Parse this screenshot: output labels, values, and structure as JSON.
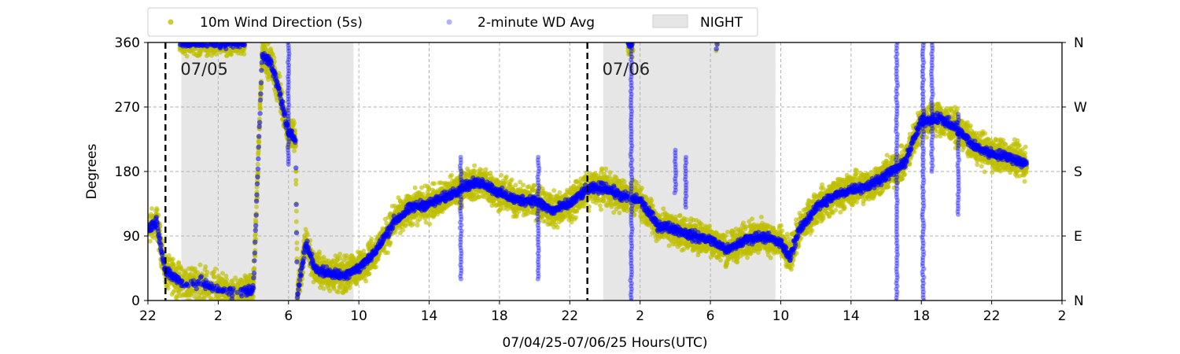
{
  "chart_data": {
    "type": "scatter",
    "xlabel": "07/04/25-07/06/25  Hours(UTC)",
    "ylabel": "Degrees",
    "x_range_hours": [
      22,
      74
    ],
    "x_tick_hours": [
      22,
      26,
      30,
      34,
      38,
      42,
      46,
      50,
      54,
      58,
      62,
      66,
      70,
      74
    ],
    "x_tick_labels": [
      "22",
      "2",
      "6",
      "10",
      "14",
      "18",
      "22",
      "2",
      "6",
      "10",
      "14",
      "18",
      "22",
      "2"
    ],
    "ylim": [
      0,
      360
    ],
    "y_ticks": [
      0,
      90,
      180,
      270,
      360
    ],
    "y_tick_labels": [
      "0",
      "90",
      "180",
      "270",
      "360"
    ],
    "right_y_tick_labels": [
      "N",
      "E",
      "S",
      "W",
      "N"
    ],
    "grid": true,
    "legend_position": "top, outside above plot",
    "legend": {
      "wind_5s": "10m Wind Direction (5s)",
      "wd_avg": "2-minute WD Avg",
      "night": "NIGHT"
    },
    "colors": {
      "wind_5s": "#bfbf00",
      "wd_avg": "#0000ff",
      "night": "#e6e6e6"
    },
    "night_intervals_hours": [
      [
        23.9,
        33.7
      ],
      [
        47.9,
        57.7
      ]
    ],
    "day_markers": [
      {
        "hour": 23.0,
        "label": "07/05"
      },
      {
        "hour": 47.0,
        "label": "07/06"
      }
    ],
    "wd_avg_series_anchor_points": [
      [
        22.0,
        100
      ],
      [
        22.5,
        110
      ],
      [
        23.0,
        40
      ],
      [
        24.0,
        25
      ],
      [
        25.0,
        25
      ],
      [
        26.0,
        15
      ],
      [
        27.0,
        10
      ],
      [
        28.0,
        15
      ],
      [
        28.5,
        345
      ],
      [
        29.0,
        330
      ],
      [
        29.5,
        290
      ],
      [
        30.0,
        232
      ],
      [
        30.2,
        230
      ],
      [
        30.4,
        225
      ],
      [
        30.5,
        10
      ],
      [
        31.0,
        80
      ],
      [
        31.5,
        45
      ],
      [
        32.0,
        40
      ],
      [
        33.0,
        35
      ],
      [
        34.0,
        45
      ],
      [
        35.0,
        70
      ],
      [
        36.0,
        110
      ],
      [
        37.0,
        130
      ],
      [
        38.0,
        135
      ],
      [
        39.0,
        145
      ],
      [
        40.0,
        160
      ],
      [
        41.0,
        165
      ],
      [
        42.0,
        150
      ],
      [
        43.0,
        140
      ],
      [
        44.0,
        140
      ],
      [
        45.0,
        125
      ],
      [
        46.0,
        135
      ],
      [
        47.0,
        155
      ],
      [
        48.0,
        158
      ],
      [
        49.0,
        145
      ],
      [
        50.0,
        140
      ],
      [
        51.0,
        105
      ],
      [
        52.0,
        100
      ],
      [
        53.0,
        90
      ],
      [
        54.0,
        85
      ],
      [
        55.0,
        70
      ],
      [
        56.0,
        85
      ],
      [
        57.0,
        90
      ],
      [
        58.0,
        80
      ],
      [
        58.5,
        60
      ],
      [
        59.0,
        95
      ],
      [
        60.0,
        130
      ],
      [
        61.0,
        145
      ],
      [
        62.0,
        155
      ],
      [
        63.0,
        160
      ],
      [
        64.0,
        175
      ],
      [
        65.0,
        190
      ],
      [
        66.0,
        250
      ],
      [
        67.0,
        255
      ],
      [
        68.0,
        240
      ],
      [
        69.0,
        215
      ],
      [
        70.0,
        205
      ],
      [
        71.0,
        200
      ],
      [
        72.0,
        190
      ]
    ],
    "wd_avg_north_intervals_hours": [
      [
        23.8,
        27.5
      ],
      [
        49.3,
        49.6
      ],
      [
        54.3,
        54.4
      ]
    ],
    "wd_avg_spikes": [
      {
        "hour": 30.0,
        "from": 190,
        "to": 360
      },
      {
        "hour": 52.0,
        "from": 150,
        "to": 210
      },
      {
        "hour": 52.6,
        "from": 130,
        "to": 200
      },
      {
        "hour": 49.5,
        "from": 0,
        "to": 360
      },
      {
        "hour": 64.6,
        "from": 0,
        "to": 360
      },
      {
        "hour": 66.1,
        "from": 0,
        "to": 360
      },
      {
        "hour": 66.6,
        "from": 180,
        "to": 360
      },
      {
        "hour": 68.1,
        "from": 120,
        "to": 260
      },
      {
        "hour": 39.8,
        "from": 30,
        "to": 200
      },
      {
        "hour": 44.2,
        "from": 30,
        "to": 200
      }
    ],
    "wind_5s_spread_degrees": 32,
    "wind_5s_north_spread_degrees": 25
  }
}
